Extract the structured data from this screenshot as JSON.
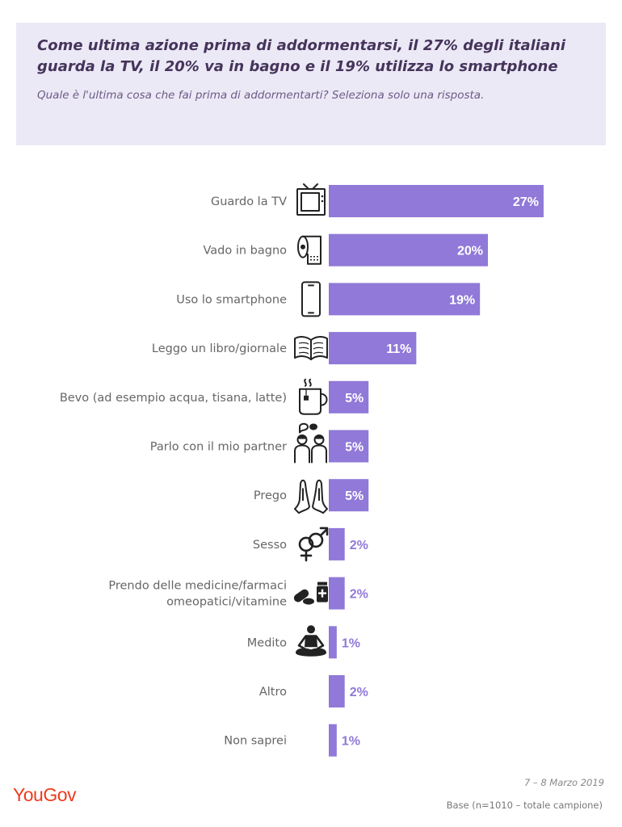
{
  "header": {
    "title": "Come ultima azione prima di addormentarsi, il 27% degli italiani guarda la TV, il 20% va in bagno e il 19% utilizza lo smartphone",
    "subtitle": "Quale è l'ultima cosa che fai prima di addormentarti? Seleziona solo una risposta."
  },
  "chart_data": {
    "type": "bar",
    "orientation": "horizontal",
    "unit": "%",
    "xlim": [
      0,
      30
    ],
    "bar_color": "#9079d8",
    "categories": [
      {
        "label": [
          "Guardo la TV"
        ],
        "value": 27,
        "value_label": "27%",
        "icon": "tv-icon"
      },
      {
        "label": [
          "Vado in bagno"
        ],
        "value": 20,
        "value_label": "20%",
        "icon": "toilet-paper-icon"
      },
      {
        "label": [
          "Uso lo smartphone"
        ],
        "value": 19,
        "value_label": "19%",
        "icon": "smartphone-icon"
      },
      {
        "label": [
          "Leggo un libro/giornale"
        ],
        "value": 11,
        "value_label": "11%",
        "icon": "book-icon"
      },
      {
        "label": [
          "Bevo (ad esempio acqua, tisana, latte)"
        ],
        "value": 5,
        "value_label": "5%",
        "icon": "mug-icon"
      },
      {
        "label": [
          "Parlo con il mio partner"
        ],
        "value": 5,
        "value_label": "5%",
        "icon": "couple-talking-icon"
      },
      {
        "label": [
          "Prego"
        ],
        "value": 5,
        "value_label": "5%",
        "icon": "praying-hands-icon"
      },
      {
        "label": [
          "Sesso"
        ],
        "value": 2,
        "value_label": "2%",
        "icon": "gender-symbols-icon"
      },
      {
        "label": [
          "Prendo delle medicine/farmaci",
          "omeopatici/vitamine"
        ],
        "value": 2,
        "value_label": "2%",
        "icon": "pills-icon"
      },
      {
        "label": [
          "Medito"
        ],
        "value": 1,
        "value_label": "1%",
        "icon": "meditation-icon"
      },
      {
        "label": [
          "Altro"
        ],
        "value": 2,
        "value_label": "2%",
        "icon": ""
      },
      {
        "label": [
          "Non saprei"
        ],
        "value": 1,
        "value_label": "1%",
        "icon": ""
      }
    ]
  },
  "footer": {
    "logo": "YouGov",
    "date": "7 – 8 Marzo 2019",
    "base": "Base (n=1010 – totale campione)"
  }
}
